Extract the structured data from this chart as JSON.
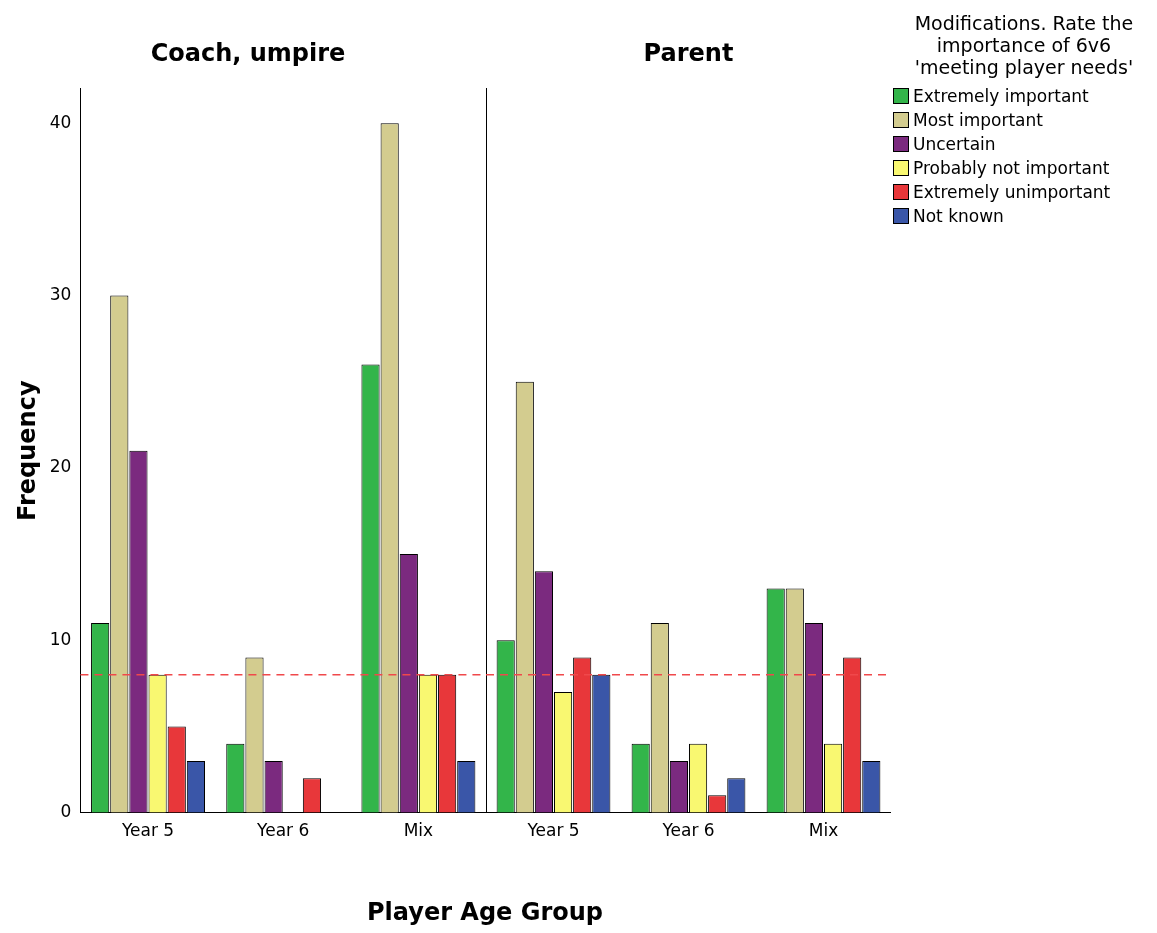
{
  "chart_data": [
    {
      "type": "bar",
      "title": "Coach, umpire",
      "ylabel": "Frequency",
      "xlabel": "Player Age Group",
      "categories": [
        "Year 5",
        "Year 6",
        "Mix"
      ],
      "series": [
        {
          "color": "#33b54a",
          "values": [
            11,
            4,
            26
          ]
        },
        {
          "color": "#d3cc8f",
          "values": [
            30,
            9,
            40
          ]
        },
        {
          "color": "#7b2a7f",
          "values": [
            21,
            3,
            15
          ]
        },
        {
          "color": "#f9f871",
          "values": [
            8,
            null,
            8
          ]
        },
        {
          "color": "#e8373a",
          "values": [
            5,
            2,
            8
          ]
        },
        {
          "color": "#3a56a8",
          "values": [
            3,
            null,
            3
          ]
        }
      ],
      "ylim": [
        0,
        42
      ],
      "yticks": [
        0,
        10,
        20,
        30,
        40
      ],
      "grid": false,
      "legend": false,
      "ref_lines": [
        {
          "axis": "y",
          "value": 8,
          "color": "#f0484b",
          "line_style": "dashed"
        }
      ]
    },
    {
      "type": "bar",
      "title": "Parent",
      "legend_title": "Modifications. Rate the importance of 6v6 'meeting player needs'",
      "categories": [
        "Year 5",
        "Year 6",
        "Mix"
      ],
      "series": [
        {
          "name": "Extremely important",
          "color": "#33b54a",
          "values": [
            10,
            4,
            13
          ]
        },
        {
          "name": "Most important",
          "color": "#d3cc8f",
          "values": [
            25,
            11,
            13
          ]
        },
        {
          "name": "Uncertain",
          "color": "#7b2a7f",
          "values": [
            14,
            3,
            11
          ]
        },
        {
          "name": "Probably not important",
          "color": "#f9f871",
          "values": [
            7,
            4,
            4
          ]
        },
        {
          "name": "Extremely unimportant",
          "color": "#e8373a",
          "values": [
            9,
            1,
            9
          ]
        },
        {
          "name": "Not known",
          "color": "#3a56a8",
          "values": [
            8,
            2,
            3
          ]
        }
      ],
      "ylim": [
        0,
        42
      ],
      "yticks": [
        0,
        10,
        20,
        30,
        40
      ],
      "grid": false,
      "legend": "right",
      "tick_labels": "x",
      "ref_lines": [
        {
          "axis": "y",
          "value": 8,
          "color": "#f0484b",
          "line_style": "dashed"
        }
      ]
    }
  ]
}
